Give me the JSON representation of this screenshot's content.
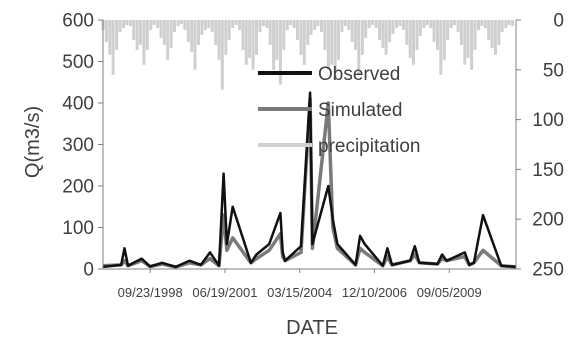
{
  "chart_data": {
    "type": "line",
    "title": "",
    "xlabel": "DATE",
    "ylabel": "Q(m3/s)",
    "ylim": [
      0,
      600
    ],
    "y_ticks": [
      "0",
      "100",
      "200",
      "300",
      "400",
      "500",
      "600"
    ],
    "y2_ticks": [
      "0",
      "50",
      "100",
      "150",
      "200",
      "250"
    ],
    "y2lim": [
      0,
      250
    ],
    "y2_inverted": true,
    "x_tick_labels": [
      "09/23/1998",
      "06/19/2001",
      "03/15/2004",
      "12/10/2006",
      "09/05/2009"
    ],
    "x_range": [
      "1996-12-31",
      "2012-02-15"
    ],
    "legend_position": "upper-center",
    "grid": false,
    "colors": {
      "observed": "#111111",
      "simulated": "#7a7a7a",
      "precipitation": "#cfcfcf",
      "axis": "#808080"
    },
    "series": [
      {
        "name": "Observed",
        "axis": "primary",
        "x": [
          "1997-01-01",
          "1997-09-01",
          "1997-10-15",
          "1997-12-01",
          "1998-06-01",
          "1998-09-20",
          "1999-03-01",
          "1999-09-01",
          "2000-03-01",
          "2000-08-01",
          "2000-12-01",
          "2001-04-01",
          "2001-06-01",
          "2001-07-15",
          "2001-10-01",
          "2002-06-01",
          "2002-08-15",
          "2003-02-01",
          "2003-07-01",
          "2003-08-01",
          "2003-09-01",
          "2004-04-01",
          "2004-08-01",
          "2004-09-01",
          "2005-04-01",
          "2005-06-01",
          "2005-08-01",
          "2006-04-01",
          "2006-06-01",
          "2006-08-01",
          "2007-04-01",
          "2007-06-01",
          "2007-08-01",
          "2008-04-01",
          "2008-06-01",
          "2008-08-01",
          "2009-04-01",
          "2009-06-01",
          "2009-08-01",
          "2010-04-01",
          "2010-06-01",
          "2010-08-01",
          "2010-12-01",
          "2011-08-01",
          "2012-02-15"
        ],
        "values": [
          5,
          10,
          50,
          8,
          25,
          6,
          15,
          5,
          20,
          10,
          40,
          8,
          230,
          60,
          150,
          15,
          35,
          60,
          135,
          40,
          20,
          55,
          425,
          60,
          200,
          120,
          60,
          10,
          80,
          60,
          8,
          50,
          10,
          20,
          55,
          15,
          12,
          35,
          20,
          40,
          10,
          15,
          130,
          8,
          5
        ]
      },
      {
        "name": "Simulated",
        "axis": "primary",
        "x": [
          "1997-01-01",
          "1997-09-01",
          "1997-10-15",
          "1997-12-01",
          "1998-06-01",
          "1998-09-20",
          "1999-03-01",
          "1999-09-01",
          "2000-03-01",
          "2000-08-01",
          "2000-12-01",
          "2001-04-01",
          "2001-06-01",
          "2001-07-15",
          "2001-10-01",
          "2002-06-01",
          "2002-08-15",
          "2003-02-01",
          "2003-07-01",
          "2003-08-01",
          "2003-09-01",
          "2004-04-01",
          "2004-08-01",
          "2004-09-01",
          "2005-04-01",
          "2005-06-01",
          "2005-08-01",
          "2006-04-01",
          "2006-06-01",
          "2006-08-01",
          "2007-04-01",
          "2007-06-01",
          "2007-08-01",
          "2008-04-01",
          "2008-06-01",
          "2008-08-01",
          "2009-04-01",
          "2009-06-01",
          "2009-08-01",
          "2010-04-01",
          "2010-06-01",
          "2010-08-01",
          "2010-12-01",
          "2011-08-01",
          "2012-02-15"
        ],
        "values": [
          8,
          10,
          20,
          8,
          20,
          6,
          12,
          5,
          15,
          10,
          25,
          8,
          130,
          45,
          75,
          15,
          25,
          45,
          85,
          30,
          20,
          40,
          410,
          50,
          400,
          100,
          50,
          10,
          50,
          40,
          8,
          30,
          10,
          20,
          35,
          15,
          12,
          25,
          20,
          30,
          10,
          15,
          45,
          8,
          5
        ]
      },
      {
        "name": "precipitation",
        "axis": "secondary",
        "x": [
          "1997-01-01",
          "1997-02-15",
          "1997-04-01",
          "1997-05-15",
          "1997-07-01",
          "1997-08-15",
          "1997-10-01",
          "1997-11-15",
          "1998-01-01",
          "1998-02-15",
          "1998-04-01",
          "1998-05-15",
          "1998-07-01",
          "1998-08-15",
          "1998-10-01",
          "1998-11-15",
          "1999-01-01",
          "1999-02-15",
          "1999-04-01",
          "1999-05-15",
          "1999-07-01",
          "1999-08-15",
          "1999-10-01",
          "1999-11-15",
          "2000-01-01",
          "2000-02-15",
          "2000-04-01",
          "2000-05-15",
          "2000-07-01",
          "2000-08-15",
          "2000-10-01",
          "2000-11-15",
          "2001-01-01",
          "2001-02-15",
          "2001-04-01",
          "2001-05-15",
          "2001-07-01",
          "2001-08-15",
          "2001-10-01",
          "2001-11-15",
          "2002-01-01",
          "2002-02-15",
          "2002-04-01",
          "2002-05-15",
          "2002-07-01",
          "2002-08-15",
          "2002-10-01",
          "2002-11-15",
          "2003-01-01",
          "2003-02-15",
          "2003-04-01",
          "2003-05-15",
          "2003-07-01",
          "2003-08-15",
          "2003-10-01",
          "2003-11-15",
          "2004-01-01",
          "2004-02-15",
          "2004-04-01",
          "2004-05-15",
          "2004-07-01",
          "2004-08-15",
          "2004-10-01",
          "2004-11-15",
          "2005-01-01",
          "2005-02-15",
          "2005-04-01",
          "2005-05-15",
          "2005-07-01",
          "2005-08-15",
          "2005-10-01",
          "2005-11-15",
          "2006-01-01",
          "2006-02-15",
          "2006-04-01",
          "2006-05-15",
          "2006-07-01",
          "2006-08-15",
          "2006-10-01",
          "2006-11-15",
          "2007-01-01",
          "2007-02-15",
          "2007-04-01",
          "2007-05-15",
          "2007-07-01",
          "2007-08-15",
          "2007-10-01",
          "2007-11-15",
          "2008-01-01",
          "2008-02-15",
          "2008-04-01",
          "2008-05-15",
          "2008-07-01",
          "2008-08-15",
          "2008-10-01",
          "2008-11-15",
          "2009-01-01",
          "2009-02-15",
          "2009-04-01",
          "2009-05-15",
          "2009-07-01",
          "2009-08-15",
          "2009-10-01",
          "2009-11-15",
          "2010-01-01",
          "2010-02-15",
          "2010-04-01",
          "2010-05-15",
          "2010-07-01",
          "2010-08-15",
          "2010-10-01",
          "2010-11-15",
          "2011-01-01",
          "2011-02-15",
          "2011-04-01",
          "2011-05-15",
          "2011-07-01",
          "2011-08-15",
          "2011-10-01",
          "2011-11-15",
          "2012-01-01"
        ],
        "values": [
          10,
          22,
          35,
          55,
          30,
          12,
          8,
          5,
          6,
          20,
          30,
          25,
          45,
          30,
          10,
          5,
          8,
          18,
          25,
          40,
          28,
          12,
          6,
          4,
          10,
          22,
          32,
          50,
          25,
          15,
          10,
          8,
          12,
          25,
          40,
          70,
          35,
          20,
          8,
          5,
          10,
          30,
          45,
          38,
          50,
          35,
          12,
          6,
          8,
          25,
          50,
          40,
          65,
          30,
          10,
          5,
          8,
          20,
          35,
          45,
          25,
          15,
          10,
          6,
          12,
          30,
          50,
          45,
          60,
          40,
          12,
          6,
          10,
          22,
          30,
          55,
          35,
          18,
          8,
          5,
          8,
          20,
          28,
          35,
          22,
          14,
          8,
          6,
          10,
          25,
          38,
          45,
          30,
          16,
          8,
          5,
          8,
          22,
          30,
          55,
          40,
          20,
          8,
          5,
          12,
          25,
          45,
          38,
          50,
          30,
          10,
          6,
          8,
          20,
          28,
          35,
          25,
          12,
          8,
          5,
          6
        ]
      }
    ]
  }
}
